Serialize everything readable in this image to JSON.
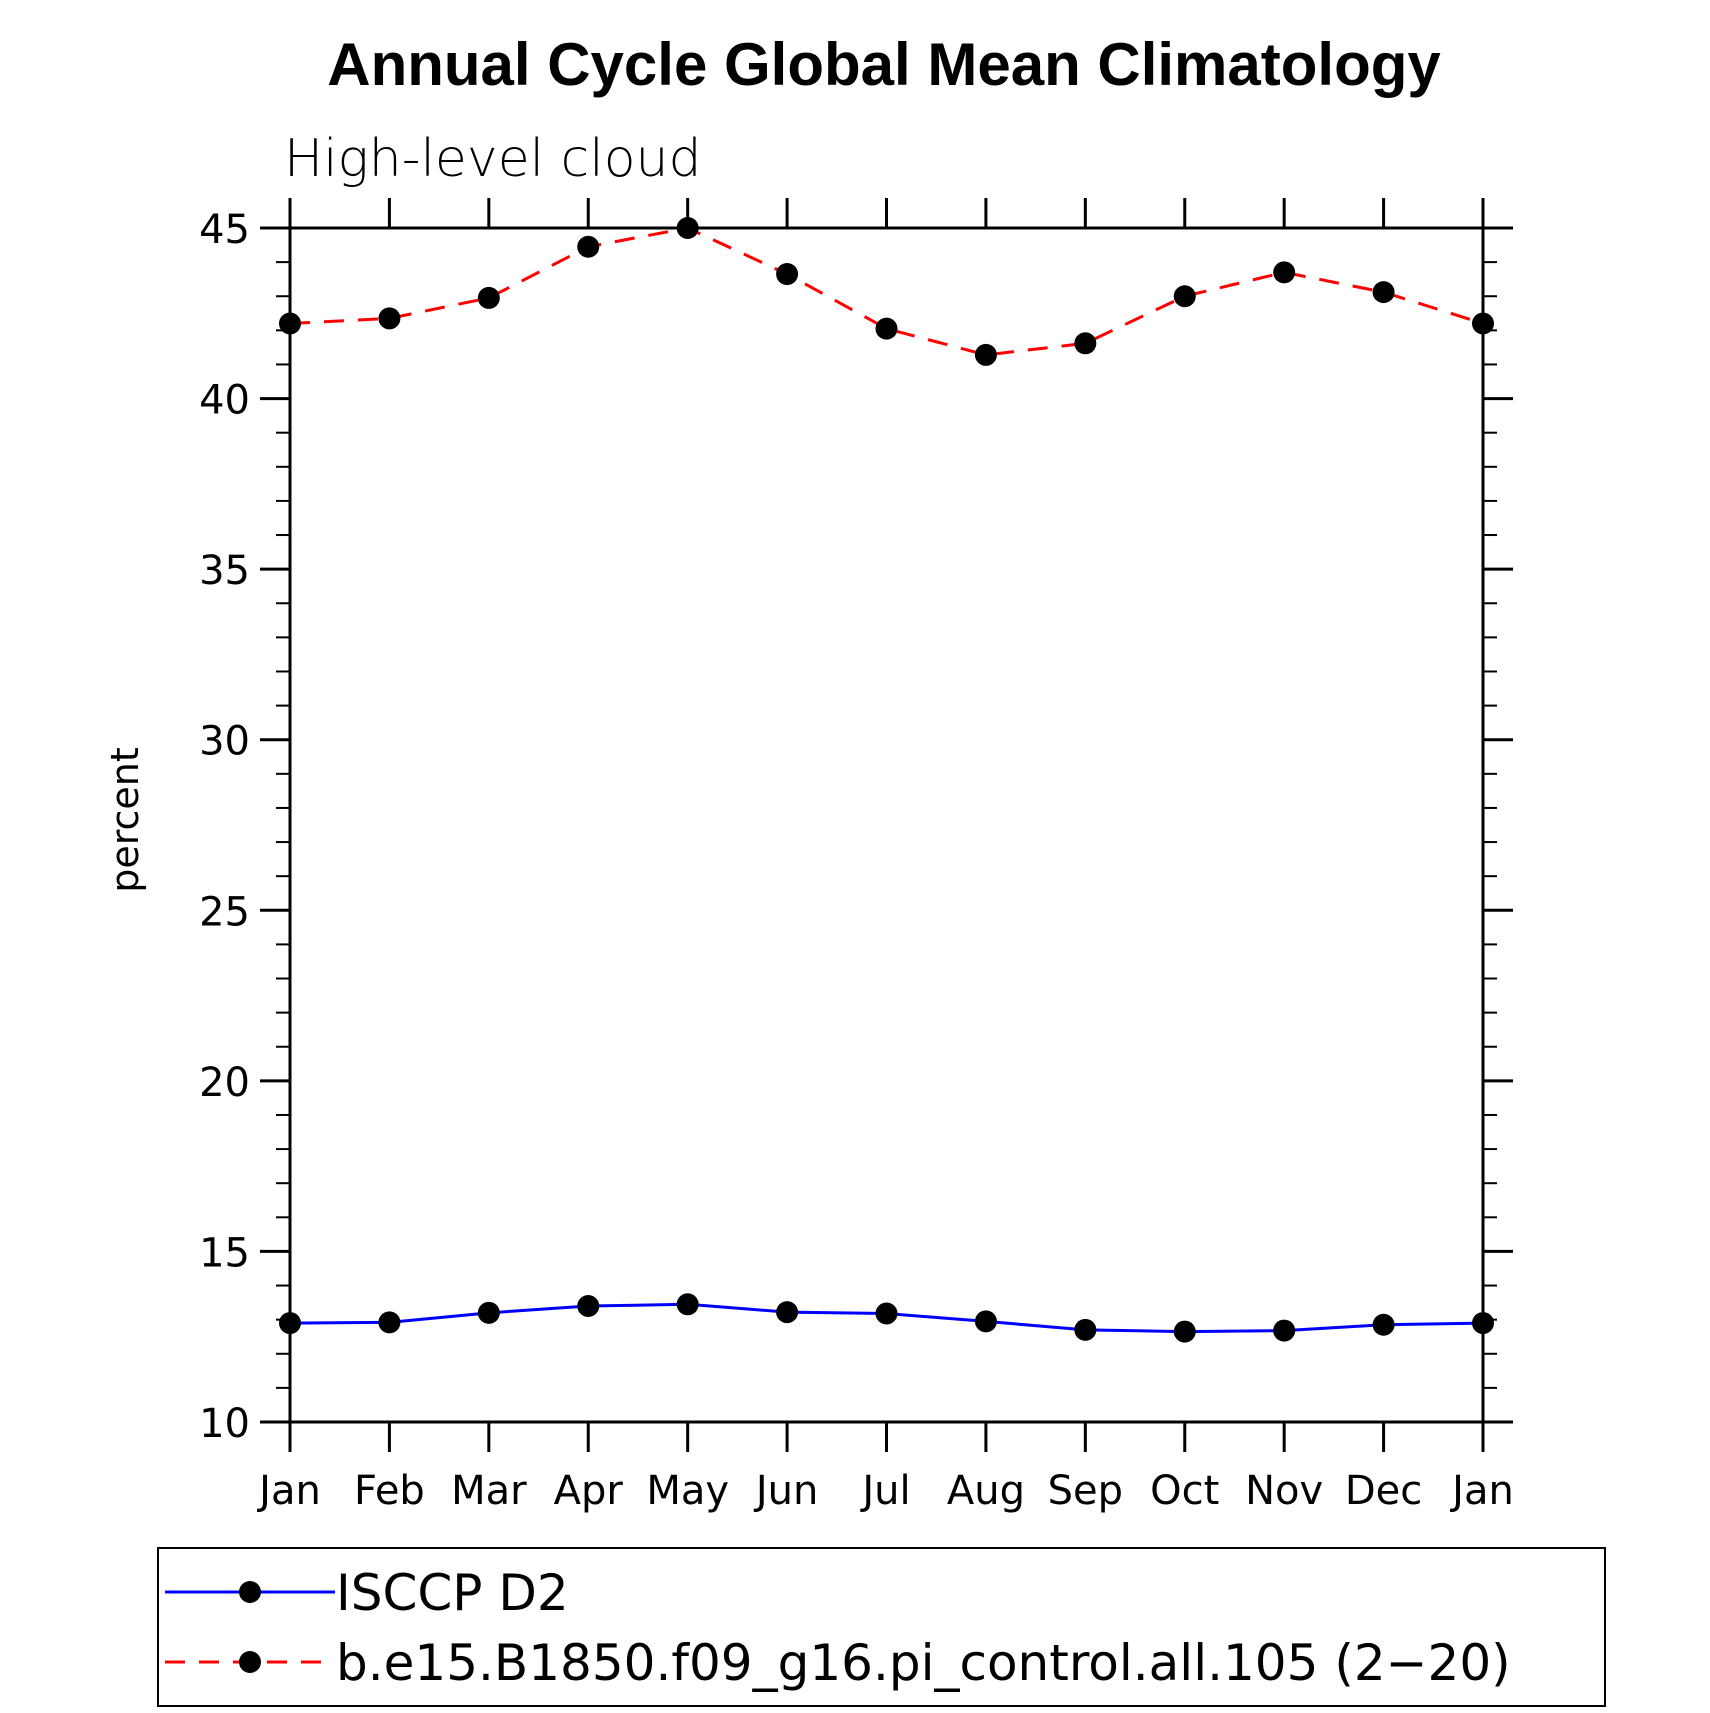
{
  "chart_data": {
    "type": "line",
    "title": "Annual Cycle Global Mean Climatology",
    "subtitle": "High-level cloud",
    "xlabel": "",
    "ylabel": "percent",
    "categories": [
      "Jan",
      "Feb",
      "Mar",
      "Apr",
      "May",
      "Jun",
      "Jul",
      "Aug",
      "Sep",
      "Oct",
      "Nov",
      "Dec",
      "Jan"
    ],
    "ylim": [
      10,
      45
    ],
    "yticks": [
      10,
      15,
      20,
      25,
      30,
      35,
      40,
      45
    ],
    "yminor_step": 1,
    "grid": false,
    "legend_position": "bottom",
    "series": [
      {
        "name": "ISCCP D2",
        "color": "#0000ff",
        "dash": "solid",
        "marker": "filled-circle",
        "values": [
          12.9,
          12.92,
          13.2,
          13.4,
          13.45,
          13.22,
          13.18,
          12.95,
          12.7,
          12.65,
          12.68,
          12.85,
          12.9
        ]
      },
      {
        "name": "b.e15.B1850.f09_g16.pi_control.all.105 (2−20)",
        "color": "#ff0000",
        "dash": "dashed",
        "marker": "filled-circle",
        "values": [
          42.2,
          42.35,
          42.95,
          44.45,
          45.0,
          43.65,
          42.05,
          41.28,
          41.62,
          43.0,
          43.7,
          43.12,
          42.2
        ]
      }
    ]
  }
}
